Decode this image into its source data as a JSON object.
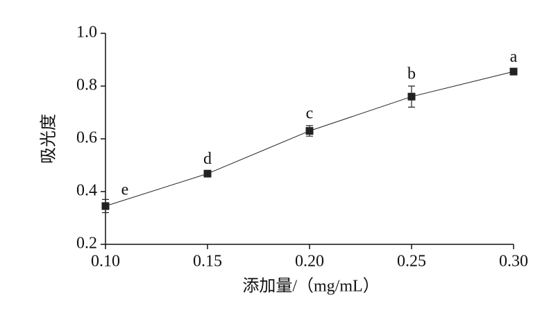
{
  "chart_data": {
    "type": "line",
    "x_label": "添加量/（mg/mL）",
    "y_label": "吸光度",
    "x": [
      0.1,
      0.15,
      0.2,
      0.25,
      0.3
    ],
    "series": [
      {
        "color": "#222222",
        "values": [
          0.345,
          0.468,
          0.63,
          0.76,
          0.855
        ],
        "errors": [
          0.025,
          0.01,
          0.02,
          0.04,
          0.01
        ],
        "point_labels": [
          "e",
          "d",
          "c",
          "b",
          "a"
        ]
      }
    ],
    "xlim": [
      0.1,
      0.3
    ],
    "xticks": [
      {
        "value": 0.1,
        "label": "0.10"
      },
      0.15,
      {
        "value": 0.2,
        "label": "0.20"
      },
      0.25,
      {
        "value": 0.3,
        "label": "0.30"
      }
    ],
    "ylim": [
      0.2,
      1.0
    ],
    "yticks": [
      0.2,
      0.4,
      0.6,
      0.8,
      {
        "value": 1,
        "label": "1.0"
      }
    ]
  }
}
